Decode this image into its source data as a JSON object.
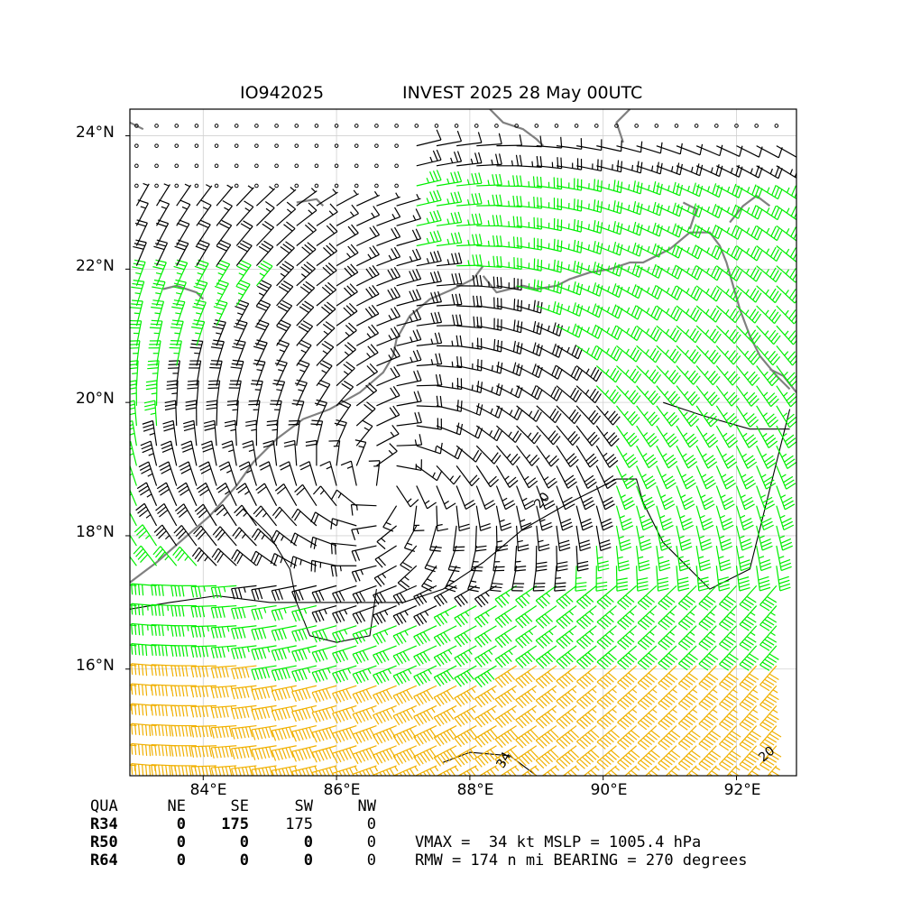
{
  "title": {
    "storm_id": "IO942025",
    "description": "INVEST 2025 28 May 00UTC"
  },
  "map": {
    "lat_labels": [
      "24°N",
      "22°N",
      "20°N",
      "18°N",
      "16°N"
    ],
    "lon_labels": [
      "84°E",
      "86°E",
      "88°E",
      "90°E",
      "92°E"
    ],
    "lat_range": [
      14.4,
      24.4
    ],
    "lon_range": [
      82.9,
      92.9
    ],
    "center_lat": 18.7,
    "center_lon": 86.7,
    "coastline_color": "#808080",
    "barb_colors": {
      "below34": "#000000",
      "34to49": "#00ee00",
      "50plus": "#f0b000"
    },
    "contour_labels": [
      "20",
      "34",
      "20"
    ]
  },
  "wind_radii": {
    "header": [
      "QUA",
      "NE",
      "SE",
      "SW",
      "NW"
    ],
    "rows": [
      {
        "label": "R34",
        "values": [
          "0",
          "175",
          "175",
          "0"
        ]
      },
      {
        "label": "R50",
        "values": [
          "0",
          "0",
          "0",
          "0"
        ]
      },
      {
        "label": "R64",
        "values": [
          "0",
          "0",
          "0",
          "0"
        ]
      }
    ]
  },
  "info": {
    "line1": "VMAX =  34 kt MSLP = 1005.4 hPa",
    "line2": "RMW = 174 n mi BEARING = 270 degrees"
  }
}
